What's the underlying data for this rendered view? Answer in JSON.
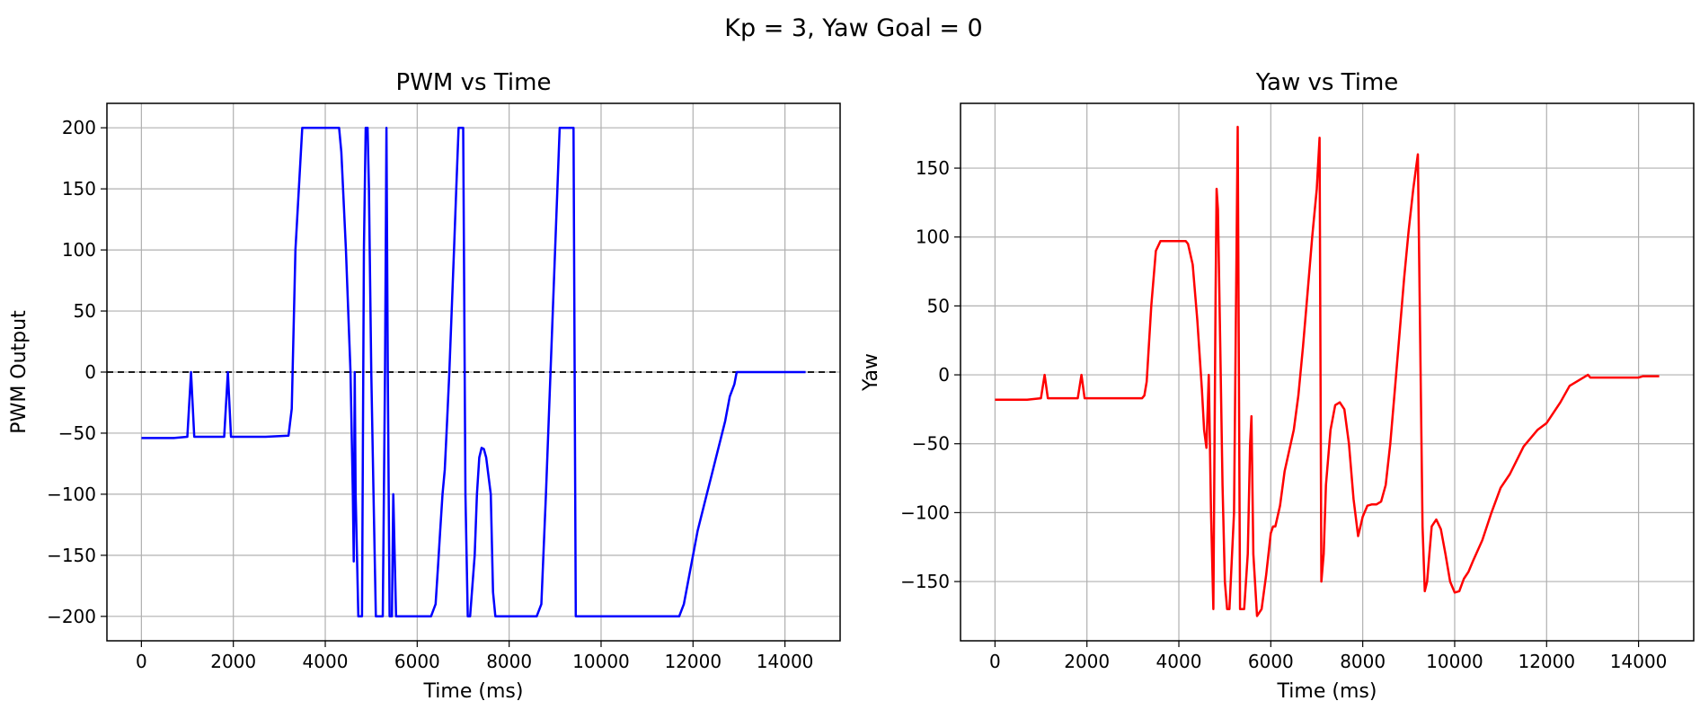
{
  "chart_data": {
    "suptitle": "Kp = 3, Yaw Goal = 0",
    "charts": [
      {
        "id": "pwm",
        "type": "line",
        "title": "PWM vs Time",
        "xlabel": "Time (ms)",
        "ylabel": "PWM Output",
        "xlim": [
          -750,
          15200
        ],
        "ylim": [
          -220,
          220
        ],
        "xticks": [
          0,
          2000,
          4000,
          6000,
          8000,
          10000,
          12000,
          14000
        ],
        "yticks": [
          -200,
          -150,
          -100,
          -50,
          0,
          50,
          100,
          150,
          200
        ],
        "grid": true,
        "color": "#0000ff",
        "reference_line": {
          "y": 0,
          "style": "dashed",
          "color": "#000000"
        },
        "series": [
          {
            "name": "PWM",
            "x": [
              0,
              700,
              1000,
              1080,
              1150,
              1800,
              1880,
              1950,
              2700,
              3200,
              3270,
              3350,
              3500,
              4300,
              4350,
              4450,
              4550,
              4600,
              4620,
              4640,
              4660,
              4720,
              4800,
              4840,
              4880,
              4920,
              4950,
              5000,
              5050,
              5100,
              5150,
              5250,
              5300,
              5330,
              5360,
              5400,
              5450,
              5480,
              5540,
              5580,
              5620,
              5700,
              5800,
              6300,
              6400,
              6450,
              6500,
              6550,
              6600,
              6650,
              6700,
              6750,
              6800,
              6850,
              6900,
              6950,
              7000,
              7050,
              7100,
              7150,
              7250,
              7300,
              7350,
              7400,
              7450,
              7500,
              7600,
              7650,
              7700,
              7800,
              8100,
              8600,
              8700,
              8800,
              8900,
              9000,
              9100,
              9150,
              9400,
              9450,
              10000,
              11700,
              11800,
              11900,
              12000,
              12100,
              12200,
              12300,
              12400,
              12500,
              12600,
              12700,
              12800,
              12900,
              12950,
              13000,
              13500,
              14000,
              14450
            ],
            "y": [
              -54,
              -54,
              -53,
              0,
              -53,
              -53,
              0,
              -53,
              -53,
              -52,
              -30,
              100,
              200,
              200,
              180,
              100,
              0,
              -100,
              -155,
              0,
              -100,
              -200,
              -200,
              100,
              200,
              200,
              150,
              0,
              -100,
              -200,
              -200,
              -200,
              0,
              200,
              0,
              -200,
              -200,
              -100,
              -200,
              -200,
              -200,
              -200,
              -200,
              -200,
              -190,
              -160,
              -130,
              -100,
              -80,
              -40,
              0,
              50,
              100,
              150,
              200,
              200,
              200,
              -100,
              -200,
              -200,
              -150,
              -100,
              -70,
              -62,
              -63,
              -70,
              -100,
              -180,
              -200,
              -200,
              -200,
              -200,
              -190,
              -100,
              0,
              100,
              200,
              200,
              200,
              -200,
              -200,
              -200,
              -190,
              -170,
              -150,
              -130,
              -115,
              -100,
              -85,
              -70,
              -55,
              -40,
              -20,
              -10,
              0,
              0,
              0,
              0,
              0
            ]
          }
        ]
      },
      {
        "id": "yaw",
        "type": "line",
        "title": "Yaw vs Time",
        "xlabel": "Time (ms)",
        "ylabel": "Yaw",
        "xlim": [
          -750,
          15200
        ],
        "ylim": [
          -193,
          197
        ],
        "xticks": [
          0,
          2000,
          4000,
          6000,
          8000,
          10000,
          12000,
          14000
        ],
        "yticks": [
          -150,
          -100,
          -50,
          0,
          50,
          100,
          150
        ],
        "grid": true,
        "color": "#ff0000",
        "series": [
          {
            "name": "Yaw",
            "x": [
              0,
              700,
              1000,
              1080,
              1150,
              1800,
              1880,
              1950,
              2700,
              3200,
              3250,
              3300,
              3400,
              3500,
              3600,
              4150,
              4200,
              4300,
              4400,
              4500,
              4550,
              4600,
              4650,
              4700,
              4750,
              4800,
              4820,
              4850,
              4900,
              4950,
              5000,
              5050,
              5100,
              5200,
              5280,
              5330,
              5380,
              5420,
              5500,
              5550,
              5580,
              5620,
              5700,
              5800,
              5900,
              6000,
              6050,
              6100,
              6200,
              6300,
              6400,
              6500,
              6600,
              6700,
              6800,
              6900,
              7000,
              7060,
              7100,
              7150,
              7200,
              7300,
              7400,
              7500,
              7600,
              7700,
              7800,
              7900,
              7950,
              8000,
              8100,
              8200,
              8300,
              8400,
              8500,
              8600,
              8700,
              8800,
              8900,
              9000,
              9100,
              9200,
              9300,
              9350,
              9400,
              9450,
              9500,
              9600,
              9700,
              9800,
              9900,
              10000,
              10100,
              10200,
              10300,
              10400,
              10600,
              10800,
              11000,
              11200,
              11500,
              11800,
              12000,
              12300,
              12500,
              12700,
              12900,
              12950,
              13000,
              13500,
              14000,
              14100,
              14450
            ],
            "y": [
              -18,
              -18,
              -17,
              0,
              -17,
              -17,
              0,
              -17,
              -17,
              -17,
              -15,
              -5,
              50,
              90,
              97,
              97,
              95,
              80,
              40,
              -10,
              -40,
              -53,
              0,
              -100,
              -170,
              60,
              135,
              120,
              20,
              -80,
              -150,
              -170,
              -170,
              -100,
              180,
              -170,
              -170,
              -170,
              -130,
              -50,
              -30,
              -130,
              -175,
              -170,
              -145,
              -115,
              -110,
              -110,
              -95,
              -70,
              -55,
              -40,
              -15,
              20,
              60,
              100,
              135,
              172,
              -150,
              -130,
              -80,
              -40,
              -22,
              -20,
              -25,
              -50,
              -90,
              -117,
              -110,
              -103,
              -95,
              -94,
              -94,
              -92,
              -80,
              -50,
              -10,
              30,
              70,
              105,
              135,
              160,
              -110,
              -157,
              -150,
              -130,
              -110,
              -105,
              -112,
              -130,
              -150,
              -158,
              -157,
              -148,
              -143,
              -135,
              -120,
              -100,
              -82,
              -72,
              -52,
              -40,
              -35,
              -20,
              -8,
              -4,
              0,
              -2,
              -2,
              -2,
              -2,
              -1,
              -1
            ]
          }
        ]
      }
    ]
  }
}
